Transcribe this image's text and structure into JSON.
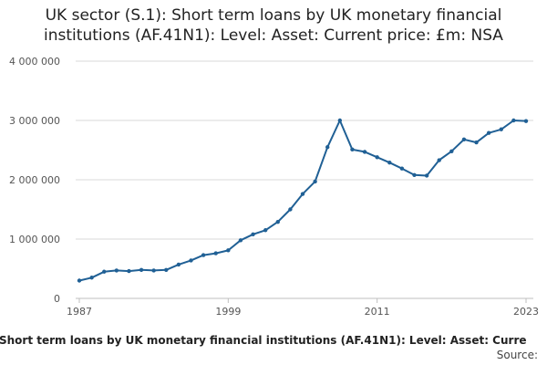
{
  "chart_data": {
    "type": "line",
    "title": "UK sector (S.1): Short term loans by UK monetary financial institutions (AF.41N1): Level: Asset: Current price: £m: NSA",
    "xlabel": "",
    "ylabel": "",
    "x_tick_labels": [
      "1987",
      "1999",
      "2011",
      "2023"
    ],
    "y_tick_labels": [
      "0",
      "1 000 000",
      "2 000 000",
      "3 000 000",
      "4 000 000"
    ],
    "ylim": [
      0,
      4000000
    ],
    "xlim": [
      1987,
      2023
    ],
    "grid": "horizontal",
    "legend": "bottom",
    "series": [
      {
        "name": "UK sector (S.1): Short term loans by UK monetary financial institutions (AF.41N1): Level: Asset: Current price: £m: NSA",
        "color": "#206095",
        "x": [
          1987,
          1988,
          1989,
          1990,
          1991,
          1992,
          1993,
          1994,
          1995,
          1996,
          1997,
          1998,
          1999,
          2000,
          2001,
          2002,
          2003,
          2004,
          2005,
          2006,
          2007,
          2008,
          2009,
          2010,
          2011,
          2012,
          2013,
          2014,
          2015,
          2016,
          2017,
          2018,
          2019,
          2020,
          2021,
          2022,
          2023
        ],
        "values": [
          300000,
          350000,
          450000,
          470000,
          460000,
          480000,
          470000,
          480000,
          570000,
          640000,
          730000,
          760000,
          810000,
          980000,
          1080000,
          1150000,
          1290000,
          1500000,
          1760000,
          1970000,
          2550000,
          3000000,
          2510000,
          2470000,
          2380000,
          2290000,
          2190000,
          2080000,
          2070000,
          2330000,
          2480000,
          2680000,
          2630000,
          2790000,
          2850000,
          3000000,
          2990000
        ]
      }
    ]
  },
  "legend": {
    "text": ": Short term loans by UK monetary financial institutions (AF.41N1): Level: Asset: Curre"
  },
  "source": {
    "text": "Source:"
  }
}
